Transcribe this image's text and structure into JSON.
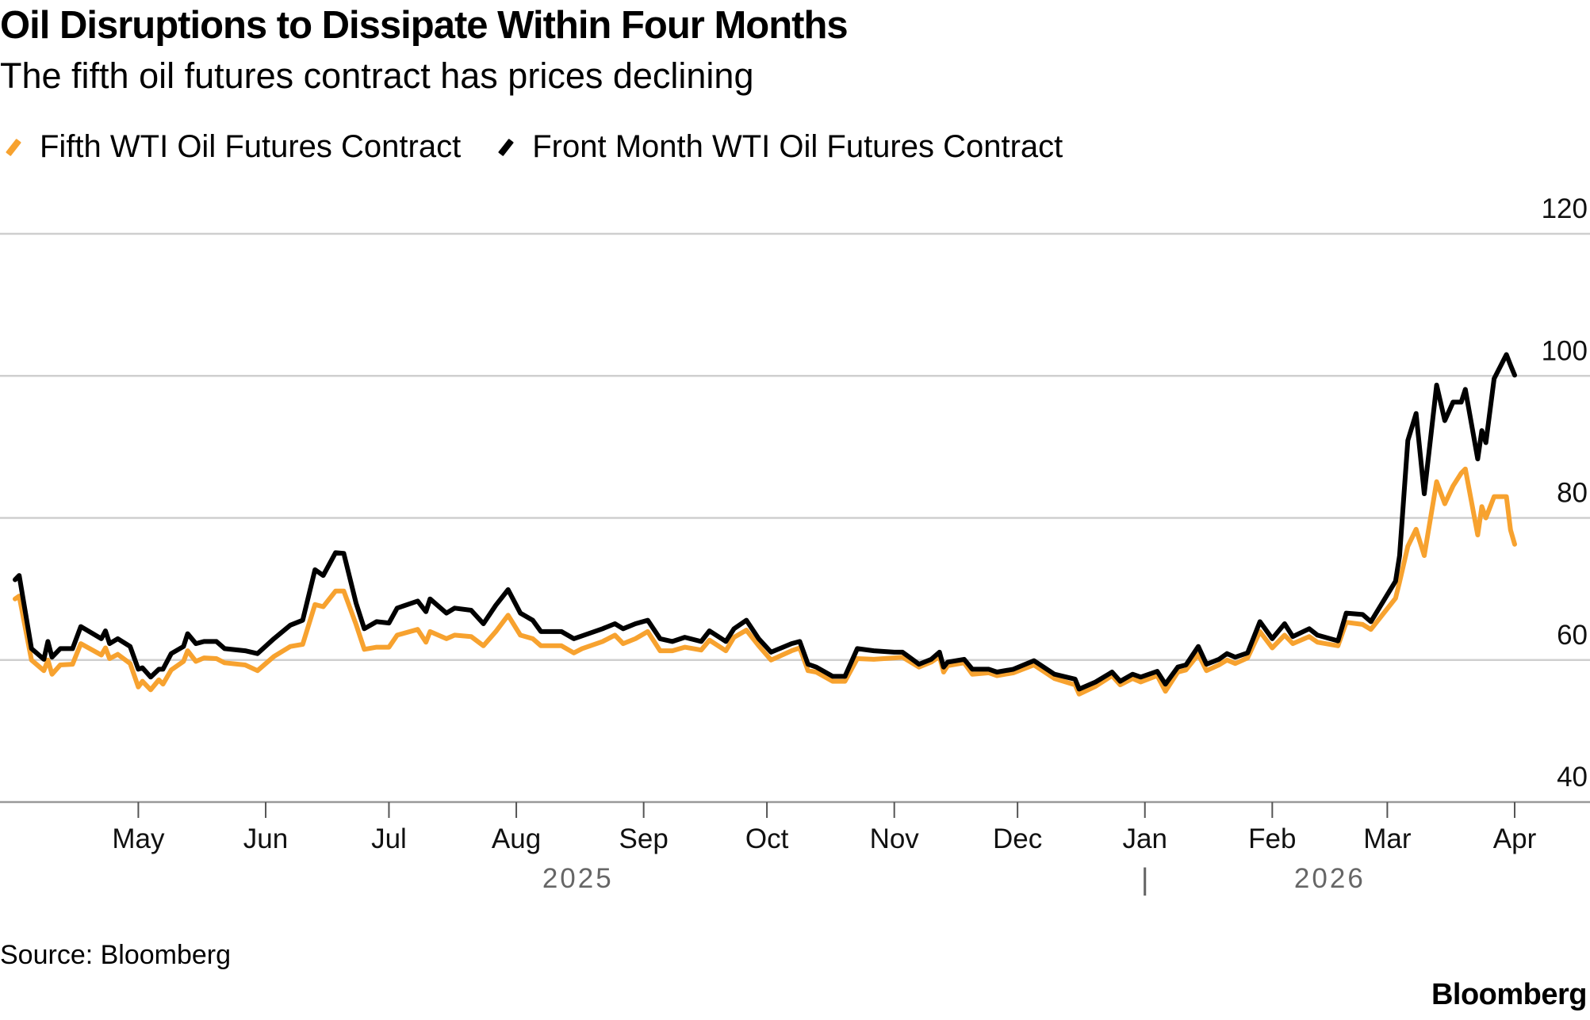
{
  "header": {
    "title": "Oil Disruptions to Dissipate Within Four Months",
    "subtitle": "The fifth oil futures contract has prices declining"
  },
  "footer": {
    "source": "Source: Bloomberg",
    "logo": "Bloomberg"
  },
  "chart_data": {
    "type": "line",
    "title": "Oil Disruptions to Dissipate Within Four Months",
    "subtitle": "The fifth oil futures contract has prices declining",
    "xlabel": "",
    "ylabel": "",
    "x_unit": "days since 2025-04-01",
    "xlim": [
      0,
      365
    ],
    "ylim": [
      40,
      120
    ],
    "yticks": [
      "40",
      "60",
      "80",
      "100",
      "120"
    ],
    "xticks": [
      {
        "label": "May",
        "day": 30
      },
      {
        "label": "Jun",
        "day": 61
      },
      {
        "label": "Jul",
        "day": 91
      },
      {
        "label": "Aug",
        "day": 122
      },
      {
        "label": "Sep",
        "day": 153
      },
      {
        "label": "Oct",
        "day": 183
      },
      {
        "label": "Nov",
        "day": 214
      },
      {
        "label": "Dec",
        "day": 244
      },
      {
        "label": "Jan",
        "day": 275
      },
      {
        "label": "Feb",
        "day": 306
      },
      {
        "label": "Mar",
        "day": 334
      },
      {
        "label": "Apr",
        "day": 365
      }
    ],
    "year_labels": [
      {
        "label": "2025",
        "day": 137
      },
      {
        "label": "2026",
        "day": 320
      }
    ],
    "year_separator": {
      "label": "|",
      "day": 275
    },
    "grid": true,
    "legend_position": "top-left",
    "x": [
      0,
      1,
      4,
      7,
      8,
      9,
      11,
      14,
      16,
      21,
      22,
      23,
      25,
      28,
      30,
      31,
      33,
      35,
      36,
      38,
      41,
      42,
      44,
      46,
      49,
      51,
      56,
      59,
      63,
      67,
      70,
      73,
      75,
      78,
      80,
      83,
      85,
      88,
      91,
      93,
      98,
      100,
      101,
      105,
      107,
      111,
      114,
      117,
      120,
      123,
      126,
      128,
      133,
      136,
      138,
      143,
      146,
      148,
      151,
      154,
      157,
      160,
      163,
      167,
      169,
      173,
      175,
      178,
      181,
      184,
      189,
      191,
      193,
      195,
      199,
      202,
      205,
      209,
      214,
      216,
      220,
      223,
      225,
      226,
      227,
      231,
      233,
      237,
      239,
      243,
      248,
      253,
      258,
      259,
      263,
      267,
      269,
      272,
      274,
      278,
      280,
      283,
      285,
      288,
      290,
      293,
      295,
      297,
      300,
      303,
      306,
      309,
      311,
      315,
      317,
      322,
      324,
      328,
      330,
      336,
      337,
      339,
      341,
      343,
      346,
      348,
      350,
      352,
      353,
      356,
      357,
      358,
      360,
      363,
      364,
      365
    ],
    "series": [
      {
        "name": "Fifth WTI Oil Futures Contract",
        "color": "#f7a22f",
        "values": [
          68.6,
          69.0,
          60.0,
          58.5,
          60.0,
          58.0,
          59.3,
          59.4,
          62.3,
          60.7,
          61.7,
          60.2,
          60.8,
          59.5,
          56.2,
          57.0,
          55.8,
          57.2,
          56.6,
          58.6,
          59.8,
          61.3,
          59.8,
          60.3,
          60.2,
          59.6,
          59.3,
          58.5,
          60.5,
          61.9,
          62.2,
          67.8,
          67.5,
          69.7,
          69.7,
          65.0,
          61.5,
          61.8,
          61.8,
          63.5,
          64.3,
          62.5,
          64.0,
          63.0,
          63.5,
          63.3,
          62.0,
          64.0,
          66.3,
          63.5,
          63.0,
          62.0,
          62.0,
          61.0,
          61.6,
          62.6,
          63.5,
          62.3,
          63.0,
          64.0,
          61.3,
          61.3,
          61.8,
          61.4,
          62.8,
          61.3,
          63.2,
          64.2,
          62.0,
          60.0,
          61.3,
          61.7,
          58.5,
          58.3,
          57.0,
          57.0,
          60.2,
          60.1,
          60.3,
          60.4,
          59.0,
          59.7,
          60.5,
          58.3,
          59.2,
          59.6,
          58.0,
          58.2,
          57.8,
          58.2,
          59.3,
          57.4,
          56.5,
          55.2,
          56.3,
          57.8,
          56.5,
          57.4,
          56.9,
          57.8,
          55.6,
          58.3,
          58.6,
          60.8,
          58.5,
          59.3,
          60.0,
          59.5,
          60.3,
          64.0,
          61.7,
          63.5,
          62.3,
          63.3,
          62.5,
          62.0,
          65.3,
          65.0,
          64.3,
          68.7,
          71.0,
          76.0,
          78.4,
          74.7,
          85.1,
          82.0,
          84.5,
          86.3,
          86.9,
          77.6,
          81.6,
          80.0,
          83.0,
          83.0,
          78.3,
          76.3
        ]
      },
      {
        "name": "Front Month WTI Oil Futures Contract",
        "color": "#000000",
        "values": [
          71.3,
          71.9,
          61.6,
          60.1,
          62.6,
          60.4,
          61.6,
          61.6,
          64.7,
          63.0,
          64.1,
          62.3,
          63.0,
          61.9,
          58.7,
          58.9,
          57.6,
          58.7,
          58.7,
          60.9,
          61.9,
          63.7,
          62.3,
          62.6,
          62.6,
          61.6,
          61.3,
          60.9,
          63.0,
          64.9,
          65.6,
          72.7,
          71.9,
          75.1,
          75.0,
          68.0,
          64.4,
          65.4,
          65.2,
          67.3,
          68.3,
          66.8,
          68.6,
          66.6,
          67.3,
          67.0,
          65.1,
          67.7,
          69.9,
          66.6,
          65.6,
          64.0,
          64.0,
          63.0,
          63.4,
          64.4,
          65.1,
          64.4,
          65.1,
          65.6,
          63.0,
          62.6,
          63.2,
          62.6,
          64.1,
          62.6,
          64.4,
          65.6,
          63.0,
          61.1,
          62.3,
          62.6,
          59.4,
          59.0,
          57.7,
          57.7,
          61.6,
          61.3,
          61.1,
          61.1,
          59.4,
          60.1,
          61.1,
          59.0,
          59.7,
          60.1,
          58.7,
          58.7,
          58.3,
          58.7,
          59.9,
          58.0,
          57.3,
          55.9,
          56.9,
          58.3,
          57.0,
          58.0,
          57.6,
          58.4,
          56.6,
          59.0,
          59.3,
          61.9,
          59.4,
          60.1,
          60.9,
          60.4,
          61.0,
          65.4,
          63.0,
          65.1,
          63.3,
          64.4,
          63.5,
          62.7,
          66.6,
          66.4,
          65.4,
          71.1,
          74.7,
          90.9,
          94.7,
          83.4,
          98.7,
          93.7,
          96.3,
          96.3,
          98.1,
          88.3,
          92.3,
          90.6,
          99.6,
          103.0,
          101.5,
          100.1
        ]
      }
    ]
  }
}
